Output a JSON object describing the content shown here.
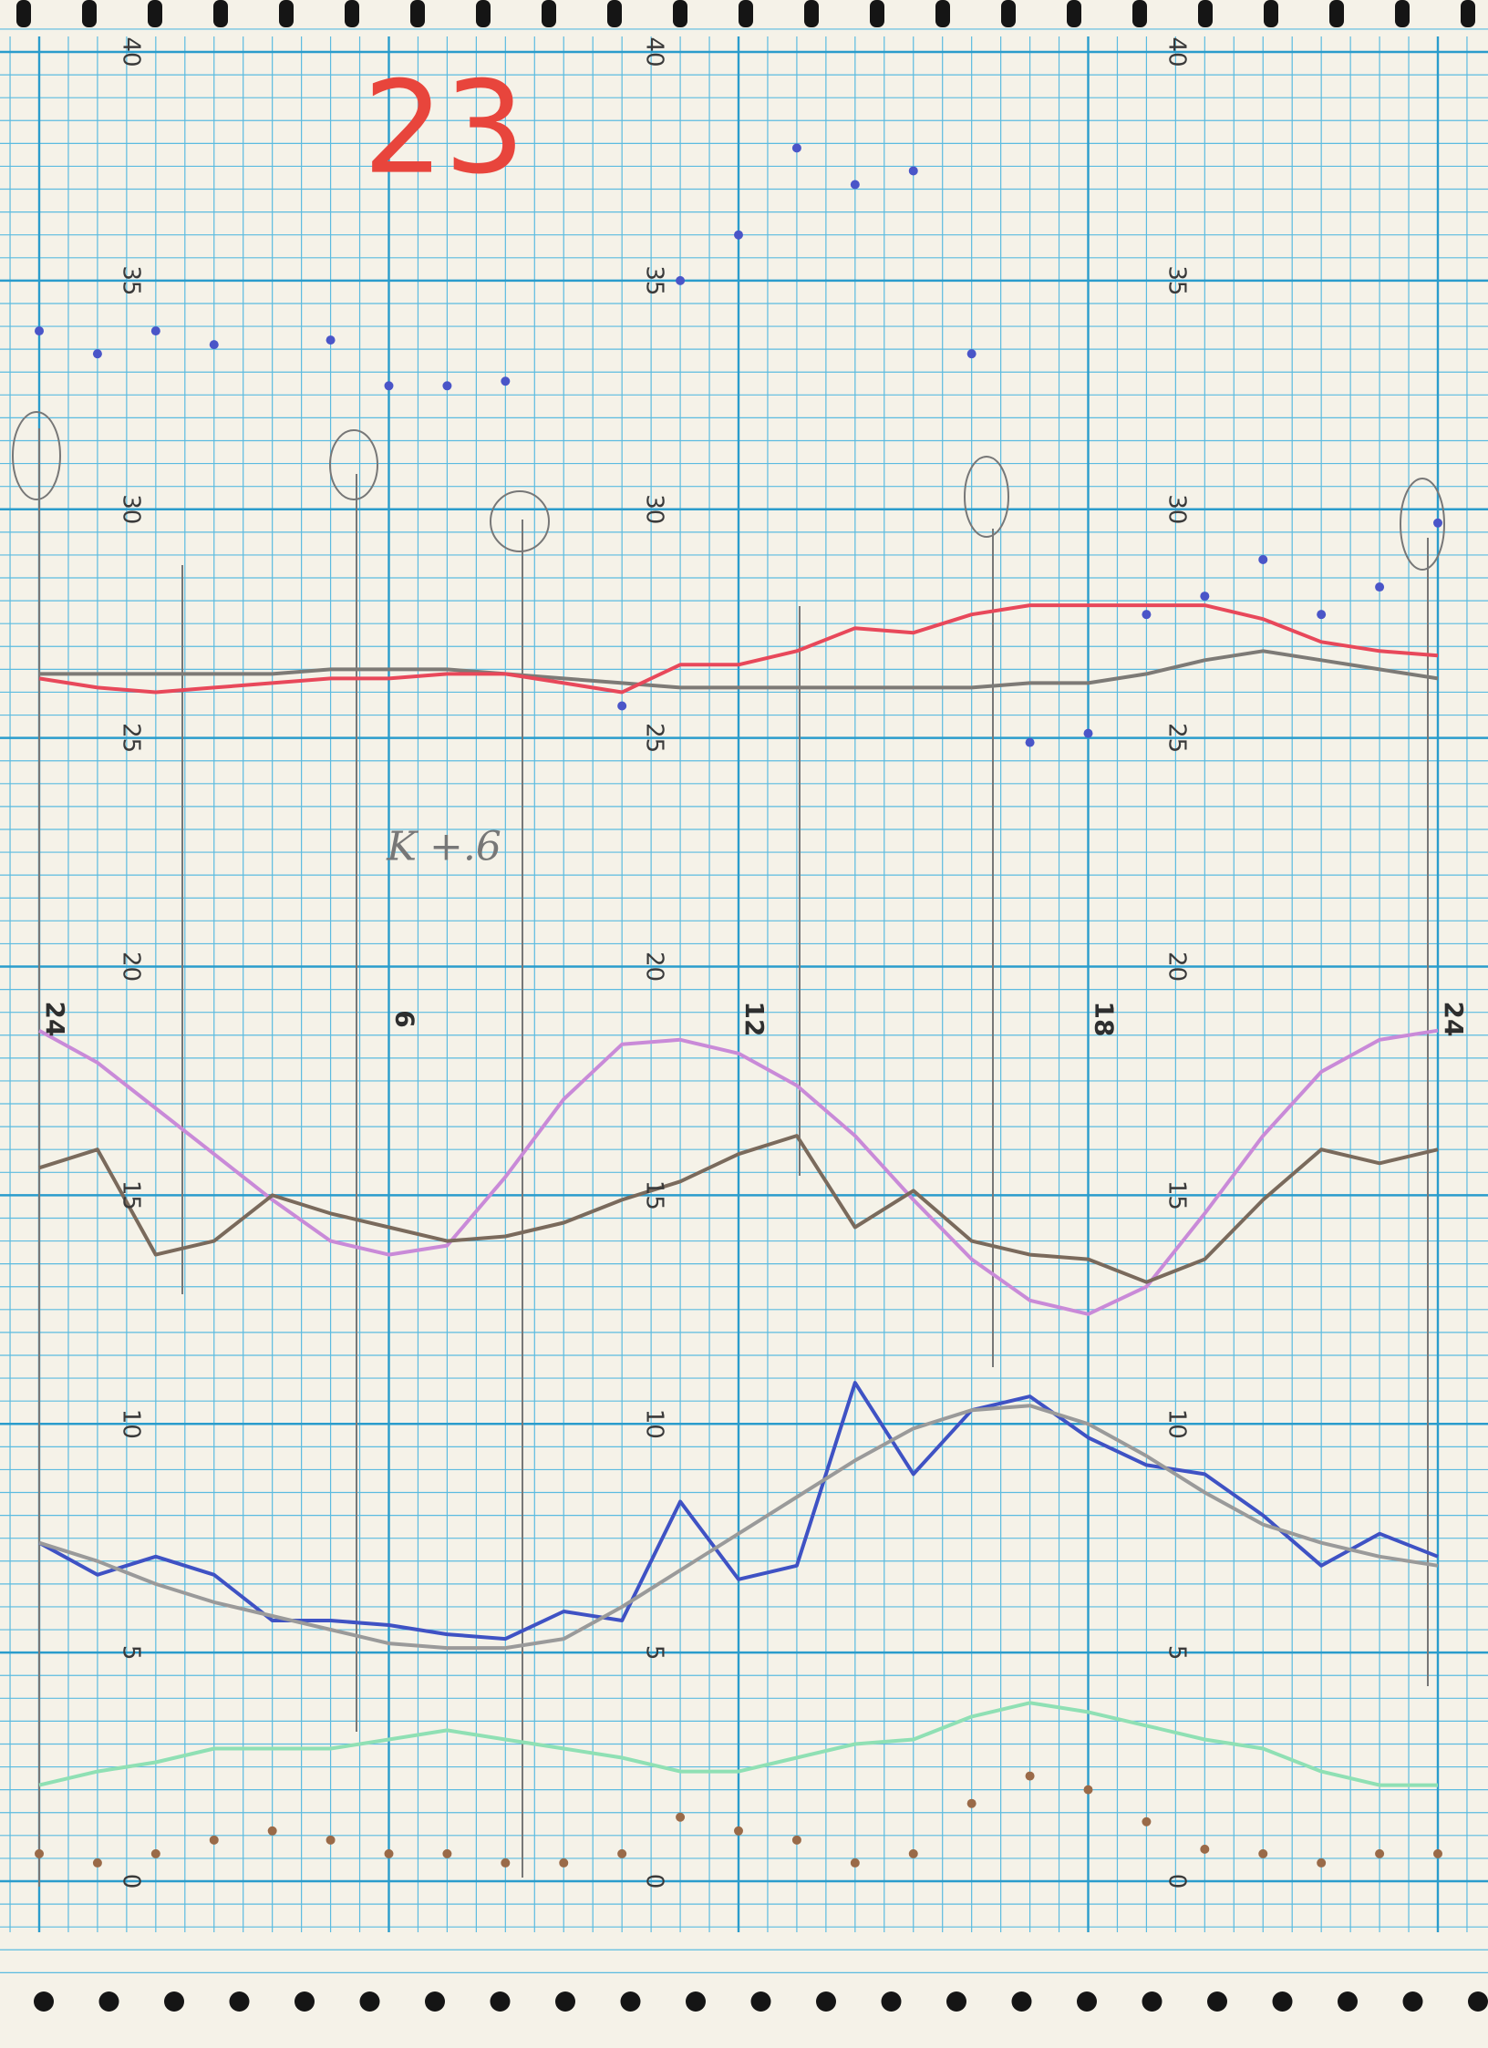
{
  "chart_data": {
    "type": "line",
    "annotations": [
      "23",
      "K +.6"
    ],
    "x": [
      0,
      1,
      2,
      3,
      4,
      5,
      6,
      7,
      8,
      9,
      10,
      11,
      12,
      13,
      14,
      15,
      16,
      17,
      18,
      19,
      20,
      21,
      22,
      23,
      24
    ],
    "xlim": [
      0,
      24
    ],
    "xticks": [
      {
        "value": 0,
        "label": "24"
      },
      6,
      12,
      18,
      {
        "value": 24,
        "label": "24"
      }
    ],
    "ylim": [
      0,
      40
    ],
    "yticks": [
      0,
      5,
      10,
      15,
      20,
      25,
      30,
      35,
      40
    ],
    "grid": true,
    "series": [
      {
        "color": "#4a55c8",
        "marker": "dots",
        "values": [
          33.9,
          33.4,
          33.9,
          33.6,
          null,
          33.7,
          32.7,
          32.7,
          32.8,
          null,
          25.7,
          35.0,
          36.0,
          37.9,
          37.1,
          37.4,
          33.4,
          24.9,
          25.1,
          27.7,
          28.1,
          28.9,
          27.7,
          28.3,
          29.7
        ]
      },
      {
        "color": "#7d7a76",
        "values": [
          26.4,
          26.4,
          26.4,
          26.4,
          26.4,
          26.5,
          26.5,
          26.5,
          26.4,
          26.3,
          26.2,
          26.1,
          26.1,
          26.1,
          26.1,
          26.1,
          26.1,
          26.2,
          26.2,
          26.4,
          26.7,
          26.9,
          26.7,
          26.5,
          26.3
        ]
      },
      {
        "color": "#e8485a",
        "values": [
          26.3,
          26.1,
          26.0,
          26.1,
          26.2,
          26.3,
          26.3,
          26.4,
          26.4,
          26.2,
          26.0,
          26.6,
          26.6,
          26.9,
          27.4,
          27.3,
          27.7,
          27.9,
          27.9,
          27.9,
          27.9,
          27.6,
          27.1,
          26.9,
          26.8
        ]
      },
      {
        "color": "#c98ad8",
        "values": [
          18.6,
          17.9,
          16.9,
          15.9,
          14.9,
          14.0,
          13.7,
          13.9,
          15.4,
          17.1,
          18.3,
          18.4,
          18.1,
          17.4,
          16.3,
          14.9,
          13.6,
          12.7,
          12.4,
          13.0,
          14.6,
          16.3,
          17.7,
          18.4,
          18.6
        ]
      },
      {
        "color": "#7a6a5c",
        "values": [
          15.6,
          16.0,
          13.7,
          14.0,
          15.0,
          14.6,
          14.3,
          14.0,
          14.1,
          14.4,
          14.9,
          15.3,
          15.9,
          16.3,
          14.3,
          15.1,
          14.0,
          13.7,
          13.6,
          13.1,
          13.6,
          14.9,
          16.0,
          15.7,
          16.0
        ]
      },
      {
        "color": "#3f52c4",
        "values": [
          7.4,
          6.7,
          7.1,
          6.7,
          5.7,
          5.7,
          5.6,
          5.4,
          5.3,
          5.9,
          5.7,
          8.3,
          6.6,
          6.9,
          10.9,
          8.9,
          10.3,
          10.6,
          9.7,
          9.1,
          8.9,
          8.0,
          6.9,
          7.6,
          7.1
        ]
      },
      {
        "color": "#9a9a9a",
        "values": [
          7.4,
          7.0,
          6.5,
          6.1,
          5.8,
          5.5,
          5.2,
          5.1,
          5.1,
          5.3,
          6.0,
          6.8,
          7.6,
          8.4,
          9.2,
          9.9,
          10.3,
          10.4,
          10.0,
          9.3,
          8.5,
          7.8,
          7.4,
          7.1,
          6.9
        ]
      },
      {
        "color": "#8fe0b4",
        "values": [
          2.1,
          2.4,
          2.6,
          2.9,
          2.9,
          2.9,
          3.1,
          3.3,
          3.1,
          2.9,
          2.7,
          2.4,
          2.4,
          2.7,
          3.0,
          3.1,
          3.6,
          3.9,
          3.7,
          3.4,
          3.1,
          2.9,
          2.4,
          2.1,
          2.1
        ]
      },
      {
        "color": "#9a6a48",
        "marker": "dots",
        "values": [
          0.6,
          0.4,
          0.6,
          0.9,
          1.1,
          0.9,
          0.6,
          0.6,
          0.4,
          0.4,
          0.6,
          1.4,
          1.1,
          0.9,
          0.4,
          0.6,
          1.7,
          2.3,
          2.0,
          1.3,
          0.7,
          0.6,
          0.4,
          0.6,
          0.6
        ]
      }
    ]
  }
}
